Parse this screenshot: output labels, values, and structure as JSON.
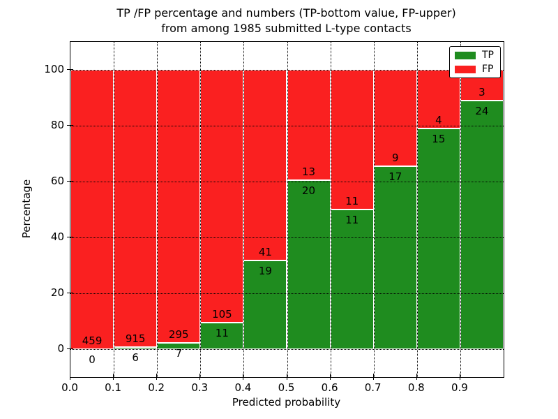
{
  "figure": {
    "title_line1": "TP /FP percentage and numbers (TP-bottom value, FP-upper)",
    "title_line2": "from among 1985 submitted L-type contacts",
    "xlabel": "Predicted probability",
    "ylabel": "Percentage",
    "background_color": "#ffffff"
  },
  "legend": {
    "position": "upper right",
    "items": [
      {
        "label": "TP",
        "color": "#1f8c1f"
      },
      {
        "label": "FP",
        "color": "#fa2020"
      }
    ]
  },
  "chart_data": {
    "type": "bar",
    "stacked": true,
    "title": "TP /FP percentage and numbers (TP-bottom value, FP-upper) from among 1985 submitted L-type contacts",
    "xlabel": "Predicted probability",
    "ylabel": "Percentage",
    "total_submitted_contacts": 1985,
    "bin_width": 0.1,
    "bin_starts": [
      0.0,
      0.1,
      0.2,
      0.3,
      0.4,
      0.5,
      0.6,
      0.7,
      0.8,
      0.9
    ],
    "series": [
      {
        "name": "TP",
        "color": "#1f8c1f",
        "counts": [
          0,
          6,
          7,
          11,
          19,
          20,
          11,
          17,
          15,
          24
        ]
      },
      {
        "name": "FP",
        "color": "#fa2020",
        "counts": [
          459,
          915,
          295,
          105,
          41,
          13,
          11,
          9,
          4,
          3
        ]
      }
    ],
    "tp_percent_of_bin": [
      0.0,
      0.65,
      2.32,
      9.48,
      31.67,
      60.61,
      50.0,
      65.38,
      78.95,
      88.89
    ],
    "bars_stack_to_percent": 100,
    "value_label_rule": "TP count below green top, FP count above green top",
    "xticks": [
      "0.0",
      "0.1",
      "0.2",
      "0.3",
      "0.4",
      "0.5",
      "0.6",
      "0.7",
      "0.8",
      "0.9"
    ],
    "yticks": [
      "0",
      "20",
      "40",
      "60",
      "80",
      "100"
    ],
    "xlim": [
      0.0,
      1.0
    ],
    "ylim": [
      -10,
      110
    ],
    "grid": "dotted black on major x and y ticks",
    "legend_position": "upper right"
  }
}
